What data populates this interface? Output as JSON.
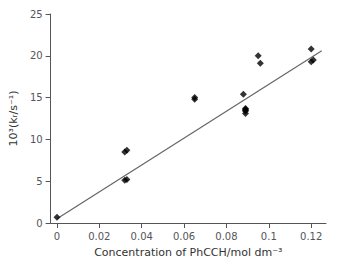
{
  "chart_data": {
    "type": "scatter",
    "xlabel": "Concentration of PhCCH/mol dm⁻³",
    "ylabel": "10³(kᵣ/s⁻¹)",
    "xlim": [
      -0.003,
      0.127
    ],
    "ylim": [
      0,
      25
    ],
    "xticks": [
      0,
      0.02,
      0.04,
      0.06,
      0.08,
      0.1,
      0.12
    ],
    "yticks": [
      0,
      5,
      10,
      15,
      20,
      25
    ],
    "grid": false,
    "series": [
      {
        "type": "line",
        "color": "#666666",
        "line_style": "solid",
        "x": [
          0.0,
          0.125
        ],
        "values": [
          0.5,
          20.6
        ]
      },
      {
        "type": "scatter",
        "color": "black",
        "marker": "diamond",
        "x": [
          0.0,
          0.032,
          0.033,
          0.032,
          0.033,
          0.065,
          0.065,
          0.088,
          0.089,
          0.089,
          0.089,
          0.089,
          0.089,
          0.095,
          0.096,
          0.12,
          0.121,
          0.12
        ],
        "values": [
          0.7,
          8.5,
          8.7,
          5.1,
          5.2,
          14.8,
          15.0,
          15.4,
          13.1,
          13.4,
          13.5,
          13.6,
          13.7,
          20.0,
          19.1,
          20.8,
          19.5,
          19.3
        ]
      }
    ]
  }
}
